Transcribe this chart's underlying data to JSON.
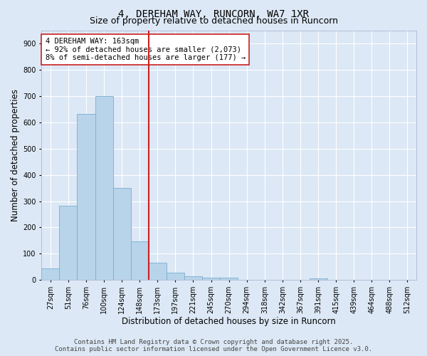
{
  "title": "4, DEREHAM WAY, RUNCORN, WA7 1XR",
  "subtitle": "Size of property relative to detached houses in Runcorn",
  "xlabel": "Distribution of detached houses by size in Runcorn",
  "ylabel": "Number of detached properties",
  "footer_line1": "Contains HM Land Registry data © Crown copyright and database right 2025.",
  "footer_line2": "Contains public sector information licensed under the Open Government Licence v3.0.",
  "bar_labels": [
    "27sqm",
    "51sqm",
    "76sqm",
    "100sqm",
    "124sqm",
    "148sqm",
    "173sqm",
    "197sqm",
    "221sqm",
    "245sqm",
    "270sqm",
    "294sqm",
    "318sqm",
    "342sqm",
    "367sqm",
    "391sqm",
    "415sqm",
    "439sqm",
    "464sqm",
    "488sqm",
    "512sqm"
  ],
  "bar_values": [
    43,
    283,
    632,
    700,
    350,
    148,
    67,
    28,
    15,
    10,
    8,
    0,
    0,
    0,
    0,
    5,
    0,
    0,
    0,
    0,
    0
  ],
  "bar_color": "#b8d4ea",
  "bar_edge_color": "#7aaecf",
  "vline_index": 6,
  "vline_color": "#cc2020",
  "annotation_text": "4 DEREHAM WAY: 163sqm\n← 92% of detached houses are smaller (2,073)\n8% of semi-detached houses are larger (177) →",
  "annotation_box_facecolor": "#ffffff",
  "annotation_box_edgecolor": "#cc2020",
  "ylim_max": 950,
  "yticks": [
    0,
    100,
    200,
    300,
    400,
    500,
    600,
    700,
    800,
    900
  ],
  "bg_color": "#dce8f5",
  "plot_bg_color": "#dce8f5",
  "grid_color": "#ffffff",
  "title_fontsize": 10,
  "subtitle_fontsize": 9,
  "axis_label_fontsize": 8.5,
  "tick_fontsize": 7,
  "annotation_fontsize": 7.5,
  "footer_fontsize": 6.5
}
